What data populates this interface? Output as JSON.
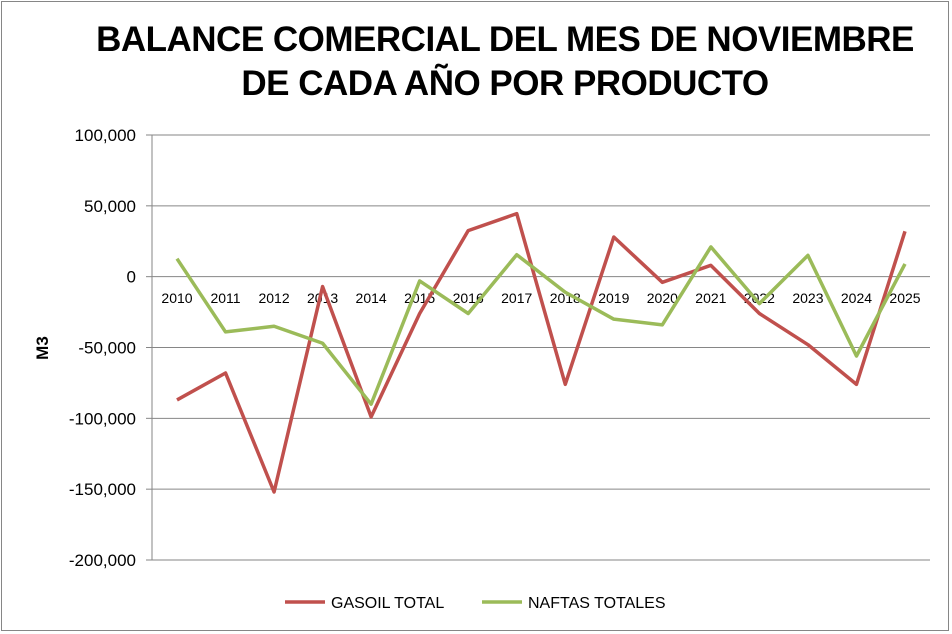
{
  "chart_data": {
    "type": "line",
    "title_lines": [
      "BALANCE COMERCIAL DEL MES DE NOVIEMBRE",
      "DE CADA AÑO POR PRODUCTO"
    ],
    "xlabel": "",
    "ylabel": "M3",
    "ylim": [
      -200000,
      100000
    ],
    "yticks": [
      100000,
      50000,
      0,
      -50000,
      -100000,
      -150000,
      -200000
    ],
    "ytick_labels": [
      "100,000",
      "50,000",
      "0",
      "-50,000",
      "-100,000",
      "-150,000",
      "-200,000"
    ],
    "grid": true,
    "legend_position": "bottom",
    "categories": [
      "2010",
      "2011",
      "2012",
      "2013",
      "2014",
      "2015",
      "2016",
      "2017",
      "2018",
      "2019",
      "2020",
      "2021",
      "2022",
      "2023",
      "2024",
      "2025"
    ],
    "series": [
      {
        "name": "GASOIL TOTAL",
        "color": "#C0504D",
        "values": [
          -87000,
          -68000,
          -152000,
          -7000,
          -99000,
          -26000,
          32500,
          44500,
          -76000,
          28000,
          -4000,
          8000,
          -26000,
          -48000,
          -76000,
          32000
        ]
      },
      {
        "name": "NAFTAS TOTALES",
        "color": "#9BBB59",
        "values": [
          12700,
          -39000,
          -35000,
          -47000,
          -90000,
          -3000,
          -26000,
          15500,
          -11000,
          -30000,
          -34000,
          21000,
          -19000,
          15000,
          -56000,
          9000
        ]
      }
    ]
  }
}
